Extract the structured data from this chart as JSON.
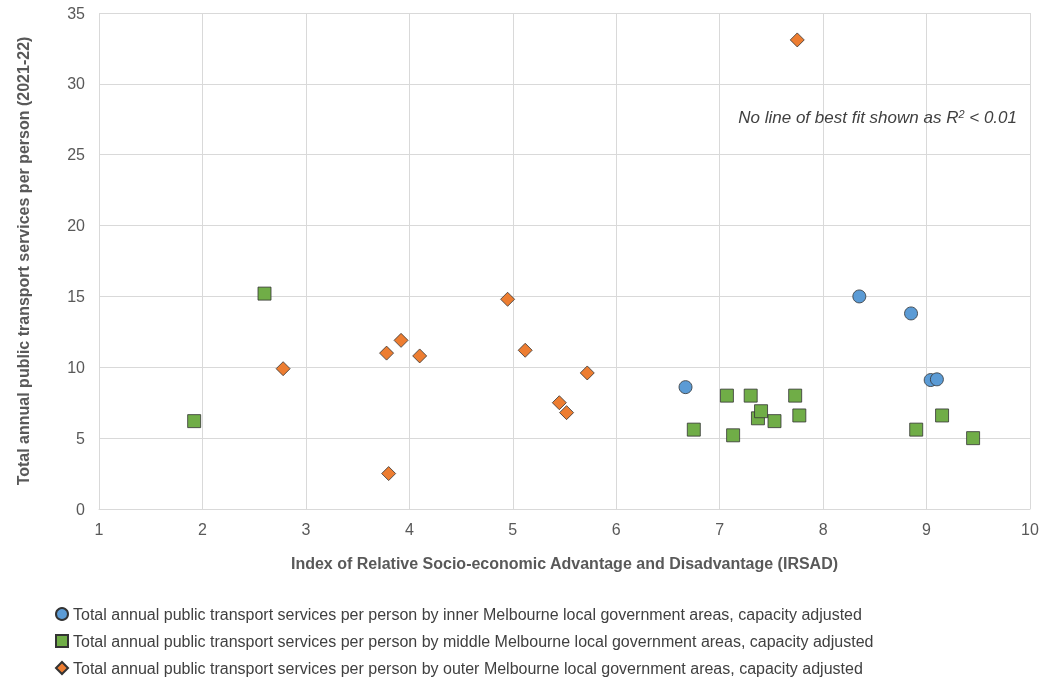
{
  "chart_data": {
    "type": "scatter",
    "xlabel": "Index of Relative Socio-economic Advantage and Disadvantage (IRSAD)",
    "ylabel": "Total annual public transport services per person (2021-22)",
    "xlim": [
      1,
      10
    ],
    "xticks": [
      1,
      2,
      3,
      4,
      5,
      6,
      7,
      8,
      9,
      10
    ],
    "ylim": [
      0,
      35
    ],
    "yticks": [
      0,
      5,
      10,
      15,
      20,
      25,
      30,
      35
    ],
    "grid": true,
    "legend": "bottom",
    "annotations": [
      "No line of best fit shown as R$^{2}$ < 0.01"
    ],
    "series": [
      {
        "name": "Total annual public transport services per person by inner Melbourne local government areas, capacity adjusted",
        "color": "#5b9bd5",
        "marker": "circle",
        "x": [
          6.67,
          8.35,
          8.85,
          9.04,
          9.1
        ],
        "values": [
          8.6,
          15.0,
          13.8,
          9.1,
          9.15
        ]
      },
      {
        "name": "Total annual public transport services per person by middle Melbourne local government areas, capacity adjusted",
        "color": "#70ad47",
        "marker": "square",
        "x": [
          1.92,
          2.6,
          6.75,
          7.07,
          7.13,
          7.3,
          7.37,
          7.4,
          7.53,
          7.73,
          7.77,
          8.9,
          9.15,
          9.45
        ],
        "values": [
          6.2,
          15.2,
          5.6,
          8.0,
          5.2,
          8.0,
          6.4,
          6.9,
          6.2,
          8.0,
          6.6,
          5.6,
          6.6,
          5.0
        ]
      },
      {
        "name": "Total annual public transport services per person by outer Melbourne local government areas, capacity adjusted",
        "color": "#ed7d31",
        "marker": "diamond",
        "x": [
          2.78,
          3.78,
          3.8,
          3.92,
          4.1,
          4.95,
          5.12,
          5.45,
          5.52,
          5.72,
          7.75
        ],
        "values": [
          9.9,
          11.0,
          2.5,
          11.9,
          10.8,
          14.8,
          11.2,
          7.5,
          6.8,
          9.6,
          33.1
        ]
      }
    ]
  }
}
